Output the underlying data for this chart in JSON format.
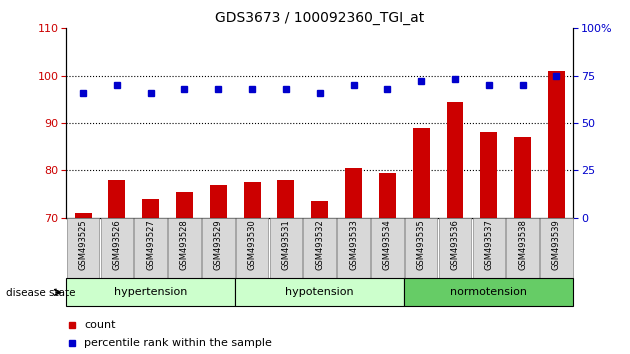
{
  "title": "GDS3673 / 100092360_TGI_at",
  "samples": [
    "GSM493525",
    "GSM493526",
    "GSM493527",
    "GSM493528",
    "GSM493529",
    "GSM493530",
    "GSM493531",
    "GSM493532",
    "GSM493533",
    "GSM493534",
    "GSM493535",
    "GSM493536",
    "GSM493537",
    "GSM493538",
    "GSM493539"
  ],
  "bar_values": [
    71,
    78,
    74,
    75.5,
    77,
    77.5,
    78,
    73.5,
    80.5,
    79.5,
    89,
    94.5,
    88,
    87,
    101
  ],
  "bar_color": "#cc0000",
  "dot_color": "#0000cc",
  "perc_right": [
    66,
    70,
    66,
    68,
    68,
    68,
    68,
    66,
    70,
    68,
    72,
    73.5,
    70,
    70,
    75
  ],
  "ylim_left": [
    70,
    110
  ],
  "ylim_right": [
    0,
    100
  ],
  "yticks_left": [
    70,
    80,
    90,
    100,
    110
  ],
  "yticks_right": [
    0,
    25,
    50,
    75,
    100
  ],
  "groups": [
    {
      "label": "hypertension",
      "start": 0,
      "end": 5,
      "color": "#ccffcc"
    },
    {
      "label": "hypotension",
      "start": 5,
      "end": 10,
      "color": "#ccffcc"
    },
    {
      "label": "normotension",
      "start": 10,
      "end": 15,
      "color": "#66cc66"
    }
  ],
  "disease_state_label": "disease state",
  "legend_count_label": "count",
  "legend_perc_label": "percentile rank within the sample",
  "bg_white": "#ffffff",
  "sample_box_color": "#d8d8d8",
  "sample_box_edge": "#888888"
}
